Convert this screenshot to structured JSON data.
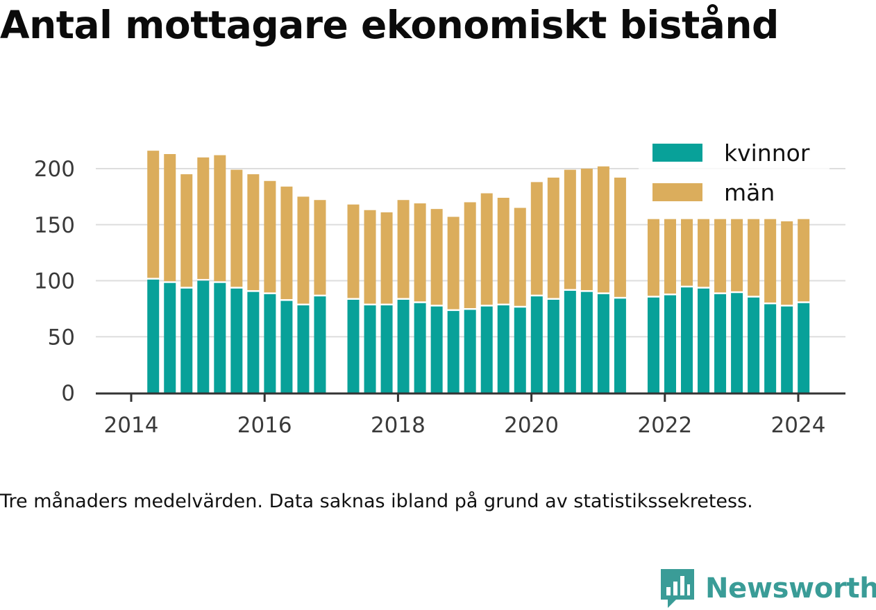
{
  "title": "Antal mottagare ekonomiskt bistånd",
  "caption": "Tre månaders medelvärden. Data saknas ibland på grund av statistikssekretess.",
  "brand": {
    "name": "Newsworthy",
    "logo_icon": "bar-chart-speech-bubble-icon"
  },
  "colors": {
    "kvinnor": "#08a199",
    "man": "#dbad5c",
    "grid": "#dddddd",
    "axis": "#333333",
    "brand": "#3a9c97"
  },
  "chart_data": {
    "type": "bar",
    "stacked": true,
    "title": "Antal mottagare ekonomiskt bistånd",
    "xlabel": "",
    "ylabel": "",
    "ylim": [
      0,
      230
    ],
    "xlim": [
      2013.5,
      2024.7
    ],
    "y_ticks": [
      0,
      50,
      100,
      150,
      200
    ],
    "x_ticks": [
      "2014",
      "2016",
      "2018",
      "2020",
      "2022",
      "2024"
    ],
    "grid": true,
    "legend_position": "top-right",
    "x": [
      2014.33,
      2014.58,
      2014.83,
      2015.08,
      2015.33,
      2015.58,
      2015.83,
      2016.08,
      2016.33,
      2016.58,
      2016.83,
      2017.33,
      2017.58,
      2017.83,
      2018.08,
      2018.33,
      2018.58,
      2018.83,
      2019.08,
      2019.33,
      2019.58,
      2019.83,
      2020.08,
      2020.33,
      2020.58,
      2020.83,
      2021.08,
      2021.33,
      2021.83,
      2022.08,
      2022.33,
      2022.58,
      2022.83,
      2023.08,
      2023.33,
      2023.58,
      2023.83,
      2024.08
    ],
    "series": [
      {
        "name": "kvinnor",
        "color": "#08a199",
        "values": [
          101,
          98,
          93,
          100,
          98,
          93,
          90,
          88,
          82,
          78,
          86,
          83,
          78,
          78,
          83,
          80,
          77,
          73,
          74,
          77,
          78,
          76,
          86,
          83,
          91,
          90,
          88,
          84,
          85,
          87,
          94,
          93,
          88,
          89,
          85,
          79,
          77,
          80
        ]
      },
      {
        "name": "män",
        "color": "#dbad5c",
        "values": [
          115,
          115,
          102,
          110,
          114,
          106,
          105,
          101,
          102,
          97,
          86,
          85,
          85,
          83,
          89,
          89,
          87,
          84,
          96,
          101,
          96,
          89,
          102,
          109,
          108,
          110,
          114,
          108,
          70,
          68,
          61,
          62,
          67,
          66,
          70,
          76,
          76,
          75
        ]
      }
    ]
  }
}
